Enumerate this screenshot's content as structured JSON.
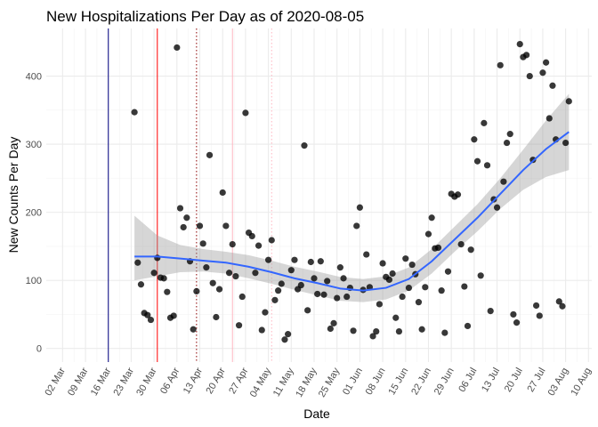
{
  "chart_data": {
    "type": "scatter",
    "title": "New Hospitalizations Per Day as of 2020-08-05",
    "xlabel": "Date",
    "ylabel": "New Counts Per Day",
    "xlim": [
      "2020-02-26",
      "2020-08-11"
    ],
    "ylim": [
      -20,
      470
    ],
    "grid": true,
    "legend": "none",
    "x_ticks": [
      {
        "date": "2020-03-02",
        "label": "02 Mar"
      },
      {
        "date": "2020-03-09",
        "label": "09 Mar"
      },
      {
        "date": "2020-03-16",
        "label": "16 Mar"
      },
      {
        "date": "2020-03-23",
        "label": "23 Mar"
      },
      {
        "date": "2020-03-30",
        "label": "30 Mar"
      },
      {
        "date": "2020-04-06",
        "label": "06 Apr"
      },
      {
        "date": "2020-04-13",
        "label": "13 Apr"
      },
      {
        "date": "2020-04-20",
        "label": "20 Apr"
      },
      {
        "date": "2020-04-27",
        "label": "27 Apr"
      },
      {
        "date": "2020-05-04",
        "label": "04 May"
      },
      {
        "date": "2020-05-11",
        "label": "11 May"
      },
      {
        "date": "2020-05-18",
        "label": "18 May"
      },
      {
        "date": "2020-05-25",
        "label": "25 May"
      },
      {
        "date": "2020-06-01",
        "label": "01 Jun"
      },
      {
        "date": "2020-06-08",
        "label": "08 Jun"
      },
      {
        "date": "2020-06-15",
        "label": "15 Jun"
      },
      {
        "date": "2020-06-22",
        "label": "22 Jun"
      },
      {
        "date": "2020-06-29",
        "label": "29 Jun"
      },
      {
        "date": "2020-07-06",
        "label": "06 Jul"
      },
      {
        "date": "2020-07-13",
        "label": "13 Jul"
      },
      {
        "date": "2020-07-20",
        "label": "20 Jul"
      },
      {
        "date": "2020-07-27",
        "label": "27 Jul"
      },
      {
        "date": "2020-08-03",
        "label": "03 Aug"
      },
      {
        "date": "2020-08-10",
        "label": "10 Aug"
      }
    ],
    "y_ticks": [
      0,
      100,
      200,
      300,
      400
    ],
    "vertical_lines": [
      {
        "date": "2020-03-16",
        "color": "#000080",
        "style": "solid"
      },
      {
        "date": "2020-03-31",
        "color": "#ff0000",
        "style": "solid"
      },
      {
        "date": "2020-04-12",
        "color": "#8b0000",
        "style": "dotted"
      },
      {
        "date": "2020-04-23",
        "color": "#ffb6c1",
        "style": "solid"
      },
      {
        "date": "2020-05-05",
        "color": "#ffb6c1",
        "style": "dotted"
      }
    ],
    "point_color": "#000000",
    "points": [
      {
        "x": "2020-03-24",
        "y": 347
      },
      {
        "x": "2020-03-25",
        "y": 126
      },
      {
        "x": "2020-03-26",
        "y": 94
      },
      {
        "x": "2020-03-27",
        "y": 52
      },
      {
        "x": "2020-03-28",
        "y": 49
      },
      {
        "x": "2020-03-29",
        "y": 42
      },
      {
        "x": "2020-03-30",
        "y": 111
      },
      {
        "x": "2020-03-31",
        "y": 133
      },
      {
        "x": "2020-04-01",
        "y": 104
      },
      {
        "x": "2020-04-02",
        "y": 103
      },
      {
        "x": "2020-04-03",
        "y": 83
      },
      {
        "x": "2020-04-04",
        "y": 45
      },
      {
        "x": "2020-04-05",
        "y": 48
      },
      {
        "x": "2020-04-06",
        "y": 442
      },
      {
        "x": "2020-04-07",
        "y": 206
      },
      {
        "x": "2020-04-08",
        "y": 178
      },
      {
        "x": "2020-04-09",
        "y": 192
      },
      {
        "x": "2020-04-10",
        "y": 128
      },
      {
        "x": "2020-04-11",
        "y": 28
      },
      {
        "x": "2020-04-12",
        "y": 84
      },
      {
        "x": "2020-04-13",
        "y": 180
      },
      {
        "x": "2020-04-14",
        "y": 154
      },
      {
        "x": "2020-04-15",
        "y": 119
      },
      {
        "x": "2020-04-16",
        "y": 284
      },
      {
        "x": "2020-04-17",
        "y": 96
      },
      {
        "x": "2020-04-18",
        "y": 46
      },
      {
        "x": "2020-04-19",
        "y": 87
      },
      {
        "x": "2020-04-20",
        "y": 229
      },
      {
        "x": "2020-04-21",
        "y": 180
      },
      {
        "x": "2020-04-22",
        "y": 111
      },
      {
        "x": "2020-04-23",
        "y": 153
      },
      {
        "x": "2020-04-24",
        "y": 106
      },
      {
        "x": "2020-04-25",
        "y": 34
      },
      {
        "x": "2020-04-26",
        "y": 76
      },
      {
        "x": "2020-04-27",
        "y": 346
      },
      {
        "x": "2020-04-28",
        "y": 170
      },
      {
        "x": "2020-04-29",
        "y": 165
      },
      {
        "x": "2020-04-30",
        "y": 111
      },
      {
        "x": "2020-05-01",
        "y": 151
      },
      {
        "x": "2020-05-02",
        "y": 27
      },
      {
        "x": "2020-05-03",
        "y": 53
      },
      {
        "x": "2020-05-04",
        "y": 130
      },
      {
        "x": "2020-05-05",
        "y": 159
      },
      {
        "x": "2020-05-06",
        "y": 71
      },
      {
        "x": "2020-05-07",
        "y": 85
      },
      {
        "x": "2020-05-08",
        "y": 95
      },
      {
        "x": "2020-05-09",
        "y": 13
      },
      {
        "x": "2020-05-10",
        "y": 21
      },
      {
        "x": "2020-05-11",
        "y": 115
      },
      {
        "x": "2020-05-12",
        "y": 130
      },
      {
        "x": "2020-05-13",
        "y": 87
      },
      {
        "x": "2020-05-14",
        "y": 93
      },
      {
        "x": "2020-05-15",
        "y": 298
      },
      {
        "x": "2020-05-16",
        "y": 56
      },
      {
        "x": "2020-05-17",
        "y": 127
      },
      {
        "x": "2020-05-18",
        "y": 103
      },
      {
        "x": "2020-05-19",
        "y": 80
      },
      {
        "x": "2020-05-20",
        "y": 128
      },
      {
        "x": "2020-05-21",
        "y": 79
      },
      {
        "x": "2020-05-22",
        "y": 99
      },
      {
        "x": "2020-05-23",
        "y": 29
      },
      {
        "x": "2020-05-24",
        "y": 37
      },
      {
        "x": "2020-05-25",
        "y": 74
      },
      {
        "x": "2020-05-26",
        "y": 119
      },
      {
        "x": "2020-05-27",
        "y": 103
      },
      {
        "x": "2020-05-28",
        "y": 76
      },
      {
        "x": "2020-05-29",
        "y": 89
      },
      {
        "x": "2020-05-30",
        "y": 26
      },
      {
        "x": "2020-05-31",
        "y": 180
      },
      {
        "x": "2020-06-01",
        "y": 207
      },
      {
        "x": "2020-06-02",
        "y": 86
      },
      {
        "x": "2020-06-03",
        "y": 138
      },
      {
        "x": "2020-06-04",
        "y": 90
      },
      {
        "x": "2020-06-05",
        "y": 18
      },
      {
        "x": "2020-06-06",
        "y": 25
      },
      {
        "x": "2020-06-07",
        "y": 65
      },
      {
        "x": "2020-06-08",
        "y": 125
      },
      {
        "x": "2020-06-09",
        "y": 105
      },
      {
        "x": "2020-06-10",
        "y": 101
      },
      {
        "x": "2020-06-11",
        "y": 110
      },
      {
        "x": "2020-06-12",
        "y": 45
      },
      {
        "x": "2020-06-13",
        "y": 25
      },
      {
        "x": "2020-06-14",
        "y": 76
      },
      {
        "x": "2020-06-15",
        "y": 132
      },
      {
        "x": "2020-06-16",
        "y": 89
      },
      {
        "x": "2020-06-17",
        "y": 123
      },
      {
        "x": "2020-06-18",
        "y": 109
      },
      {
        "x": "2020-06-19",
        "y": 68
      },
      {
        "x": "2020-06-20",
        "y": 28
      },
      {
        "x": "2020-06-21",
        "y": 90
      },
      {
        "x": "2020-06-22",
        "y": 168
      },
      {
        "x": "2020-06-23",
        "y": 192
      },
      {
        "x": "2020-06-24",
        "y": 147
      },
      {
        "x": "2020-06-25",
        "y": 148
      },
      {
        "x": "2020-06-26",
        "y": 85
      },
      {
        "x": "2020-06-27",
        "y": 23
      },
      {
        "x": "2020-06-28",
        "y": 113
      },
      {
        "x": "2020-06-29",
        "y": 227
      },
      {
        "x": "2020-06-30",
        "y": 223
      },
      {
        "x": "2020-07-01",
        "y": 226
      },
      {
        "x": "2020-07-02",
        "y": 153
      },
      {
        "x": "2020-07-03",
        "y": 91
      },
      {
        "x": "2020-07-04",
        "y": 33
      },
      {
        "x": "2020-07-05",
        "y": 145
      },
      {
        "x": "2020-07-06",
        "y": 307
      },
      {
        "x": "2020-07-07",
        "y": 275
      },
      {
        "x": "2020-07-08",
        "y": 107
      },
      {
        "x": "2020-07-09",
        "y": 331
      },
      {
        "x": "2020-07-10",
        "y": 269
      },
      {
        "x": "2020-07-11",
        "y": 55
      },
      {
        "x": "2020-07-12",
        "y": 219
      },
      {
        "x": "2020-07-13",
        "y": 207
      },
      {
        "x": "2020-07-14",
        "y": 416
      },
      {
        "x": "2020-07-15",
        "y": 245
      },
      {
        "x": "2020-07-16",
        "y": 302
      },
      {
        "x": "2020-07-17",
        "y": 315
      },
      {
        "x": "2020-07-18",
        "y": 50
      },
      {
        "x": "2020-07-19",
        "y": 38
      },
      {
        "x": "2020-07-20",
        "y": 447
      },
      {
        "x": "2020-07-21",
        "y": 428
      },
      {
        "x": "2020-07-22",
        "y": 431
      },
      {
        "x": "2020-07-23",
        "y": 400
      },
      {
        "x": "2020-07-24",
        "y": 277
      },
      {
        "x": "2020-07-25",
        "y": 63
      },
      {
        "x": "2020-07-26",
        "y": 48
      },
      {
        "x": "2020-07-27",
        "y": 405
      },
      {
        "x": "2020-07-28",
        "y": 420
      },
      {
        "x": "2020-07-29",
        "y": 338
      },
      {
        "x": "2020-07-30",
        "y": 386
      },
      {
        "x": "2020-07-31",
        "y": 307
      },
      {
        "x": "2020-08-01",
        "y": 69
      },
      {
        "x": "2020-08-02",
        "y": 62
      },
      {
        "x": "2020-08-03",
        "y": 302
      },
      {
        "x": "2020-08-04",
        "y": 363
      }
    ],
    "smooth": {
      "type": "loess",
      "line_color": "#3366ff",
      "band_color": "#999999",
      "points": [
        {
          "x": "2020-03-24",
          "y": 135,
          "lo": 100,
          "hi": 195
        },
        {
          "x": "2020-03-31",
          "y": 135,
          "lo": 106,
          "hi": 166
        },
        {
          "x": "2020-04-07",
          "y": 132,
          "lo": 112,
          "hi": 152
        },
        {
          "x": "2020-04-14",
          "y": 129,
          "lo": 113,
          "hi": 146
        },
        {
          "x": "2020-04-21",
          "y": 126,
          "lo": 110,
          "hi": 142
        },
        {
          "x": "2020-04-28",
          "y": 120,
          "lo": 103,
          "hi": 137
        },
        {
          "x": "2020-05-05",
          "y": 112,
          "lo": 95,
          "hi": 129
        },
        {
          "x": "2020-05-12",
          "y": 103,
          "lo": 86,
          "hi": 120
        },
        {
          "x": "2020-05-19",
          "y": 96,
          "lo": 78,
          "hi": 113
        },
        {
          "x": "2020-05-26",
          "y": 88,
          "lo": 70,
          "hi": 105
        },
        {
          "x": "2020-06-02",
          "y": 85,
          "lo": 68,
          "hi": 102
        },
        {
          "x": "2020-06-09",
          "y": 89,
          "lo": 72,
          "hi": 106
        },
        {
          "x": "2020-06-16",
          "y": 102,
          "lo": 85,
          "hi": 119
        },
        {
          "x": "2020-06-23",
          "y": 128,
          "lo": 110,
          "hi": 146
        },
        {
          "x": "2020-06-30",
          "y": 160,
          "lo": 142,
          "hi": 179
        },
        {
          "x": "2020-07-07",
          "y": 192,
          "lo": 172,
          "hi": 212
        },
        {
          "x": "2020-07-14",
          "y": 227,
          "lo": 205,
          "hi": 250
        },
        {
          "x": "2020-07-21",
          "y": 262,
          "lo": 233,
          "hi": 292
        },
        {
          "x": "2020-07-28",
          "y": 293,
          "lo": 252,
          "hi": 335
        },
        {
          "x": "2020-08-04",
          "y": 318,
          "lo": 262,
          "hi": 374
        }
      ]
    }
  }
}
